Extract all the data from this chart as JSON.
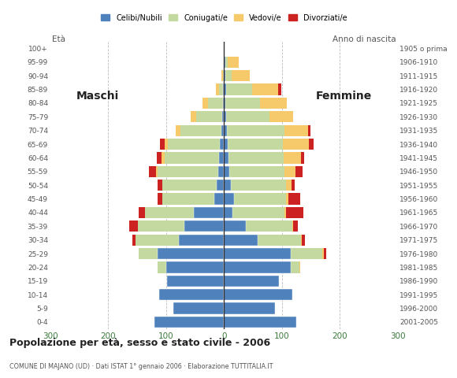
{
  "age_groups_bottom_to_top": [
    "0-4",
    "5-9",
    "10-14",
    "15-19",
    "20-24",
    "25-29",
    "30-34",
    "35-39",
    "40-44",
    "45-49",
    "50-54",
    "55-59",
    "60-64",
    "65-69",
    "70-74",
    "75-79",
    "80-84",
    "85-89",
    "90-94",
    "95-99",
    "100+"
  ],
  "birth_years_bottom_to_top": [
    "2001-2005",
    "1996-2000",
    "1991-1995",
    "1986-1990",
    "1981-1985",
    "1976-1980",
    "1971-1975",
    "1966-1970",
    "1961-1965",
    "1956-1960",
    "1951-1955",
    "1946-1950",
    "1941-1945",
    "1936-1940",
    "1931-1935",
    "1926-1930",
    "1921-1925",
    "1916-1920",
    "1911-1915",
    "1906-1910",
    "1905 o prima"
  ],
  "colors": {
    "celibi": "#4f81bd",
    "coniugati": "#c4d9a0",
    "vedovi": "#f6c96b",
    "divorziati": "#cc2222"
  },
  "males": {
    "celibi": [
      120,
      88,
      112,
      98,
      100,
      115,
      78,
      68,
      52,
      17,
      12,
      10,
      8,
      7,
      5,
      3,
      2,
      1,
      0,
      0,
      0
    ],
    "coniugati": [
      0,
      0,
      0,
      0,
      15,
      32,
      75,
      80,
      85,
      90,
      95,
      105,
      95,
      90,
      70,
      45,
      25,
      8,
      2,
      0,
      0
    ],
    "vedovi": [
      0,
      0,
      0,
      0,
      0,
      0,
      0,
      0,
      0,
      0,
      0,
      3,
      5,
      5,
      8,
      10,
      10,
      5,
      2,
      0,
      0
    ],
    "divorziati": [
      0,
      0,
      0,
      0,
      0,
      0,
      5,
      15,
      10,
      8,
      8,
      12,
      8,
      8,
      0,
      0,
      0,
      0,
      0,
      0,
      0
    ]
  },
  "females": {
    "celibi": [
      125,
      88,
      118,
      95,
      115,
      115,
      58,
      38,
      15,
      17,
      12,
      9,
      8,
      7,
      5,
      4,
      3,
      4,
      2,
      2,
      0
    ],
    "coniugati": [
      0,
      0,
      0,
      0,
      15,
      55,
      75,
      80,
      90,
      90,
      95,
      95,
      95,
      95,
      100,
      75,
      60,
      45,
      12,
      5,
      0
    ],
    "vedovi": [
      0,
      0,
      0,
      0,
      2,
      2,
      2,
      2,
      2,
      5,
      10,
      20,
      30,
      45,
      40,
      40,
      45,
      45,
      30,
      18,
      0
    ],
    "divorziati": [
      0,
      0,
      0,
      0,
      0,
      5,
      5,
      8,
      30,
      20,
      5,
      12,
      5,
      8,
      5,
      0,
      0,
      5,
      0,
      0,
      0
    ]
  },
  "title": "Popolazione per età, sesso e stato civile - 2006",
  "subtitle": "COMUNE DI MAJANO (UD) · Dati ISTAT 1° gennaio 2006 · Elaborazione TUTTITALIA.IT",
  "legend_labels": [
    "Celibi/Nubili",
    "Coniugati/e",
    "Vedovi/e",
    "Divorziati/e"
  ],
  "xlim": 300,
  "xlabel_left": "Maschi",
  "xlabel_right": "Femmine",
  "ylabel_left": "Età",
  "ylabel_right": "Anno di nascita",
  "bg_color": "#ffffff",
  "bar_height": 0.82,
  "grid_color": "#bbbbbb"
}
